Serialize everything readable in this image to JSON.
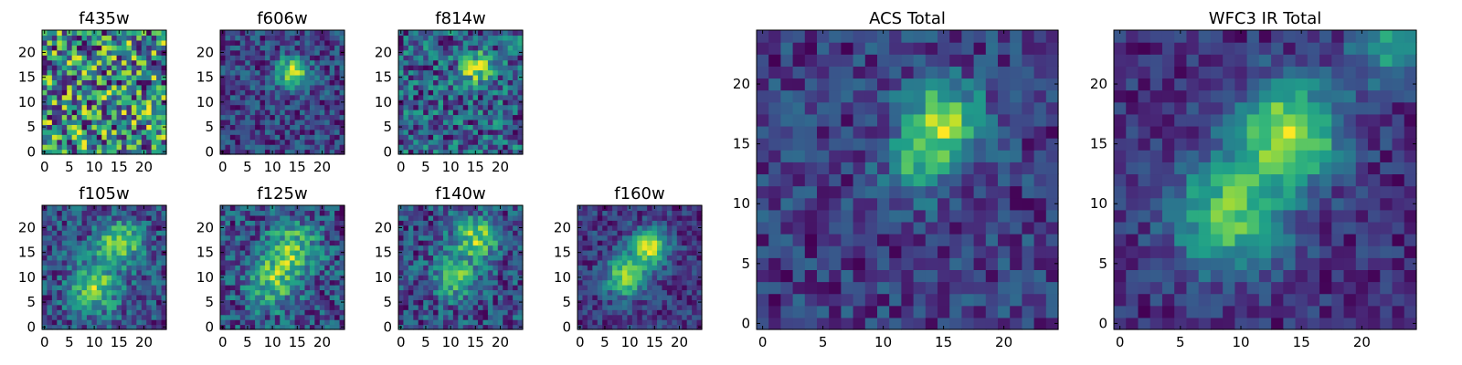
{
  "chart_data": [
    {
      "type": "heatmap",
      "title": "f435w",
      "xlabel": "",
      "ylabel": "",
      "xticks": [
        "0",
        "5",
        "10",
        "15",
        "20"
      ],
      "yticks": [
        "0",
        "5",
        "10",
        "15",
        "20"
      ],
      "xlim": [
        0,
        25
      ],
      "ylim": [
        0,
        25
      ],
      "colormap": "viridis",
      "pattern": "noise",
      "centers": [],
      "noise": 0.5,
      "seed": 11
    },
    {
      "type": "heatmap",
      "title": "f606w",
      "xlabel": "",
      "ylabel": "",
      "xticks": [
        "0",
        "5",
        "10",
        "15",
        "20"
      ],
      "yticks": [
        "0",
        "5",
        "10",
        "15",
        "20"
      ],
      "xlim": [
        0,
        25
      ],
      "ylim": [
        0,
        25
      ],
      "colormap": "viridis",
      "pattern": "source",
      "centers": [
        [
          14,
          16,
          2.2,
          0.55
        ]
      ],
      "noise": 0.35,
      "seed": 23
    },
    {
      "type": "heatmap",
      "title": "f814w",
      "xlabel": "",
      "ylabel": "",
      "xticks": [
        "0",
        "5",
        "10",
        "15",
        "20"
      ],
      "yticks": [
        "0",
        "5",
        "10",
        "15",
        "20"
      ],
      "xlim": [
        0,
        25
      ],
      "ylim": [
        0,
        25
      ],
      "colormap": "viridis",
      "pattern": "source",
      "centers": [
        [
          15,
          17,
          2.0,
          0.4
        ]
      ],
      "noise": 0.4,
      "seed": 37
    },
    {
      "type": "heatmap",
      "title": "f105w",
      "xlabel": "",
      "ylabel": "",
      "xticks": [
        "0",
        "5",
        "10",
        "15",
        "20"
      ],
      "yticks": [
        "0",
        "5",
        "10",
        "15",
        "20"
      ],
      "xlim": [
        0,
        25
      ],
      "ylim": [
        0,
        25
      ],
      "colormap": "viridis",
      "pattern": "source",
      "centers": [
        [
          15,
          17,
          3.0,
          0.45
        ],
        [
          10,
          8,
          3.5,
          0.4
        ]
      ],
      "noise": 0.35,
      "seed": 41
    },
    {
      "type": "heatmap",
      "title": "f125w",
      "xlabel": "",
      "ylabel": "",
      "xticks": [
        "0",
        "5",
        "10",
        "15",
        "20"
      ],
      "yticks": [
        "0",
        "5",
        "10",
        "15",
        "20"
      ],
      "xlim": [
        0,
        25
      ],
      "ylim": [
        0,
        25
      ],
      "colormap": "viridis",
      "pattern": "source",
      "centers": [
        [
          14,
          16,
          3.5,
          0.4
        ],
        [
          10,
          9,
          3.5,
          0.35
        ]
      ],
      "noise": 0.4,
      "seed": 53
    },
    {
      "type": "heatmap",
      "title": "f140w",
      "xlabel": "",
      "ylabel": "",
      "xticks": [
        "0",
        "5",
        "10",
        "15",
        "20"
      ],
      "yticks": [
        "0",
        "5",
        "10",
        "15",
        "20"
      ],
      "xlim": [
        0,
        25
      ],
      "ylim": [
        0,
        25
      ],
      "colormap": "viridis",
      "pattern": "source",
      "centers": [
        [
          15,
          18,
          3.0,
          0.45
        ],
        [
          11,
          10,
          3.0,
          0.35
        ]
      ],
      "noise": 0.38,
      "seed": 67
    },
    {
      "type": "heatmap",
      "title": "f160w",
      "xlabel": "",
      "ylabel": "",
      "xticks": [
        "0",
        "5",
        "10",
        "15",
        "20"
      ],
      "yticks": [
        "0",
        "5",
        "10",
        "15",
        "20"
      ],
      "xlim": [
        0,
        25
      ],
      "ylim": [
        0,
        25
      ],
      "colormap": "viridis",
      "pattern": "source",
      "centers": [
        [
          14,
          16,
          2.6,
          0.6
        ],
        [
          9,
          10,
          2.8,
          0.5
        ]
      ],
      "noise": 0.28,
      "seed": 71
    },
    {
      "type": "heatmap",
      "title": "ACS Total",
      "xlabel": "",
      "ylabel": "",
      "xticks": [
        "0",
        "5",
        "10",
        "15",
        "20"
      ],
      "yticks": [
        "0",
        "5",
        "10",
        "15",
        "20"
      ],
      "xlim": [
        0,
        25
      ],
      "ylim": [
        0,
        25
      ],
      "colormap": "viridis",
      "pattern": "source",
      "centers": [
        [
          15,
          17,
          2.3,
          0.55
        ],
        [
          13,
          13,
          2.0,
          0.3
        ]
      ],
      "noise": 0.3,
      "seed": 83
    },
    {
      "type": "heatmap",
      "title": "WFC3 IR Total",
      "xlabel": "",
      "ylabel": "",
      "xticks": [
        "0",
        "5",
        "10",
        "15",
        "20"
      ],
      "yticks": [
        "0",
        "5",
        "10",
        "15",
        "20"
      ],
      "xlim": [
        0,
        25
      ],
      "ylim": [
        0,
        25
      ],
      "colormap": "viridis",
      "pattern": "source",
      "centers": [
        [
          14,
          16,
          3.0,
          0.55
        ],
        [
          9,
          9,
          3.2,
          0.45
        ],
        [
          22,
          23,
          2.0,
          0.3
        ]
      ],
      "noise": 0.2,
      "seed": 97
    }
  ]
}
